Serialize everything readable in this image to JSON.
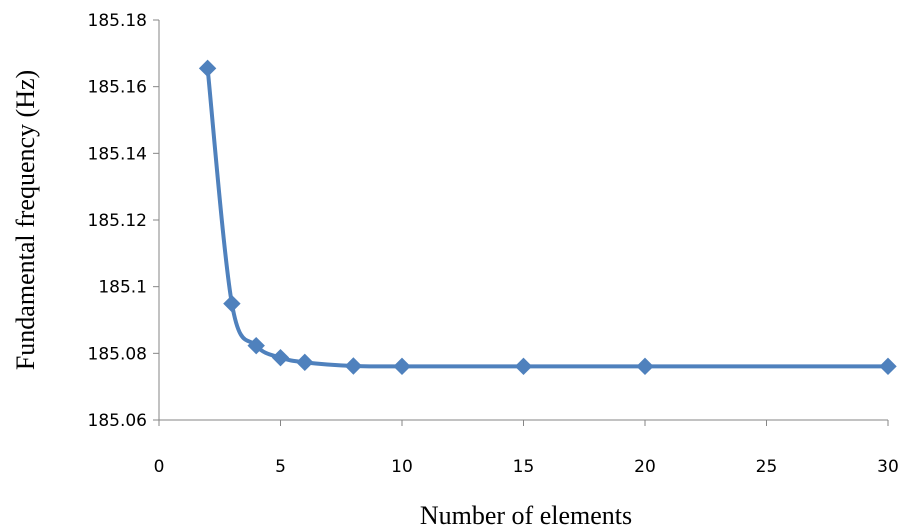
{
  "chart_data": {
    "type": "line",
    "title": "",
    "xlabel": "Number of elements",
    "ylabel": "Fundamental frequency (Hz)",
    "xlim": [
      0,
      30
    ],
    "ylim": [
      185.06,
      185.18
    ],
    "xticks": [
      0,
      5,
      10,
      15,
      20,
      25,
      30
    ],
    "yticks": [
      185.06,
      185.08,
      185.1,
      185.12,
      185.14,
      185.16,
      185.18
    ],
    "xtick_labels": [
      "0",
      "5",
      "10",
      "15",
      "20",
      "25",
      "30"
    ],
    "ytick_labels": [
      "185.06",
      "185.08",
      "185.1",
      "185.12",
      "185.14",
      "185.16",
      "185.18"
    ],
    "grid": false,
    "legend": "none",
    "smooth": true,
    "marker": "diamond",
    "color": "#4F81BD",
    "series": [
      {
        "x": [
          2,
          3,
          4,
          5,
          6,
          8,
          10,
          15,
          20,
          30
        ],
        "values": [
          185.1655,
          185.0949,
          185.0823,
          185.0787,
          185.0773,
          185.0762,
          185.0761,
          185.0761,
          185.0761,
          185.0761
        ]
      }
    ]
  }
}
